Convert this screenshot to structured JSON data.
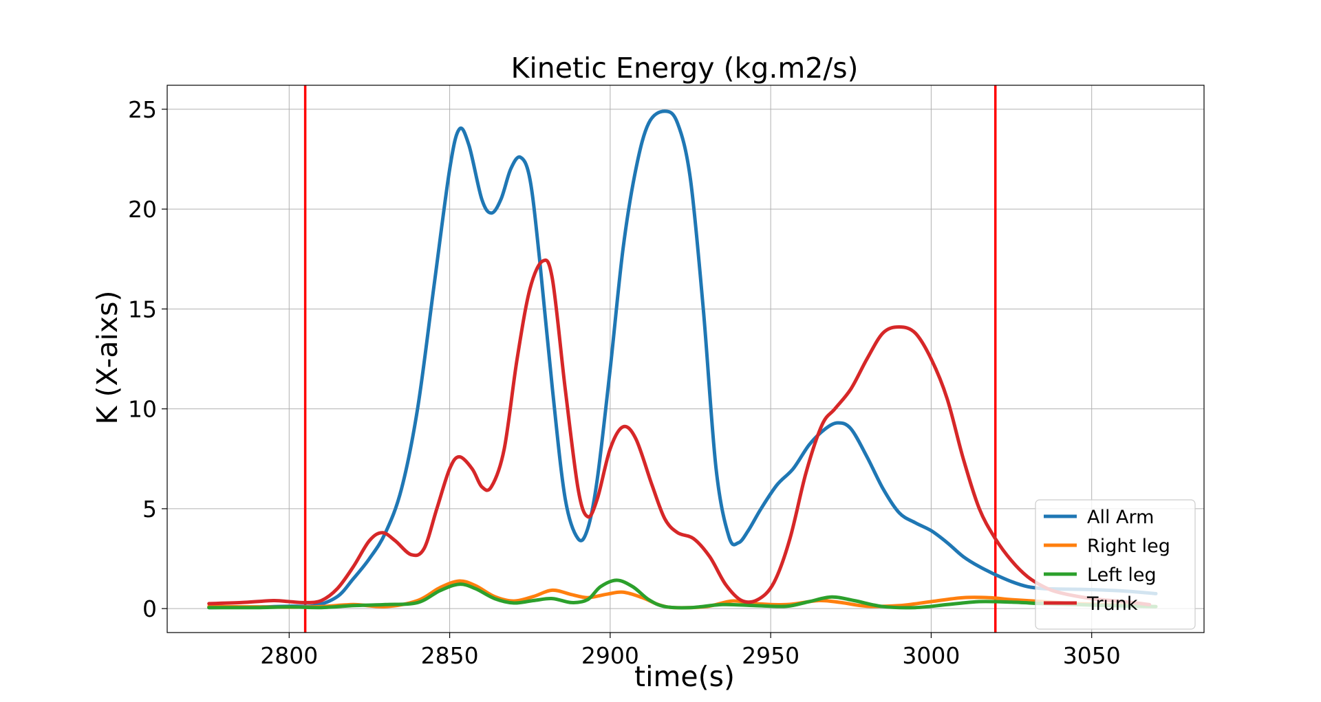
{
  "chart_data": {
    "type": "line",
    "title": "Kinetic Energy (kg.m2/s)",
    "xlabel": "time(s)",
    "ylabel": "K (X-aixs)",
    "xlim": [
      2762,
      3085
    ],
    "ylim": [
      -1.2,
      26.2
    ],
    "xticks": [
      2800,
      2850,
      2900,
      2950,
      3000,
      3050
    ],
    "yticks": [
      0,
      5,
      10,
      15,
      20,
      25
    ],
    "grid": true,
    "legend": {
      "position": "lower-right"
    },
    "vlines": [
      {
        "x": 2805,
        "color": "#ff0000"
      },
      {
        "x": 3020,
        "color": "#ff0000"
      }
    ],
    "series": [
      {
        "name": "All Arm",
        "color": "#1f77b4",
        "points": [
          [
            2775,
            0.05
          ],
          [
            2790,
            0.08
          ],
          [
            2800,
            0.12
          ],
          [
            2808,
            0.15
          ],
          [
            2815,
            0.6
          ],
          [
            2820,
            1.5
          ],
          [
            2825,
            2.5
          ],
          [
            2830,
            3.8
          ],
          [
            2835,
            6
          ],
          [
            2840,
            10
          ],
          [
            2845,
            16
          ],
          [
            2850,
            22
          ],
          [
            2853,
            24
          ],
          [
            2856,
            23.2
          ],
          [
            2860,
            20.5
          ],
          [
            2863,
            19.8
          ],
          [
            2866,
            20.5
          ],
          [
            2869,
            22
          ],
          [
            2872,
            22.6
          ],
          [
            2875,
            21.5
          ],
          [
            2878,
            17.5
          ],
          [
            2882,
            11
          ],
          [
            2886,
            5.5
          ],
          [
            2890,
            3.5
          ],
          [
            2893,
            4
          ],
          [
            2896,
            6.5
          ],
          [
            2900,
            12
          ],
          [
            2904,
            18
          ],
          [
            2908,
            22
          ],
          [
            2912,
            24.3
          ],
          [
            2917,
            24.9
          ],
          [
            2921,
            24.3
          ],
          [
            2925,
            21.5
          ],
          [
            2929,
            15
          ],
          [
            2933,
            7
          ],
          [
            2937,
            3.6
          ],
          [
            2940,
            3.3
          ],
          [
            2943,
            3.9
          ],
          [
            2947,
            5
          ],
          [
            2952,
            6.2
          ],
          [
            2957,
            7
          ],
          [
            2962,
            8.2
          ],
          [
            2967,
            9
          ],
          [
            2971,
            9.3
          ],
          [
            2975,
            9
          ],
          [
            2980,
            7.6
          ],
          [
            2985,
            6
          ],
          [
            2990,
            4.8
          ],
          [
            2995,
            4.3
          ],
          [
            3000,
            3.9
          ],
          [
            3005,
            3.3
          ],
          [
            3010,
            2.6
          ],
          [
            3015,
            2.1
          ],
          [
            3020,
            1.7
          ],
          [
            3025,
            1.35
          ],
          [
            3030,
            1.1
          ],
          [
            3035,
            1
          ],
          [
            3040,
            0.98
          ],
          [
            3050,
            0.95
          ],
          [
            3060,
            0.88
          ],
          [
            3070,
            0.75
          ]
        ]
      },
      {
        "name": "Right leg",
        "color": "#ff7f0e",
        "points": [
          [
            2775,
            0.1
          ],
          [
            2790,
            0.08
          ],
          [
            2800,
            0.07
          ],
          [
            2810,
            0.1
          ],
          [
            2820,
            0.2
          ],
          [
            2830,
            0.1
          ],
          [
            2840,
            0.4
          ],
          [
            2847,
            1.05
          ],
          [
            2853,
            1.38
          ],
          [
            2858,
            1.15
          ],
          [
            2864,
            0.6
          ],
          [
            2870,
            0.38
          ],
          [
            2876,
            0.6
          ],
          [
            2882,
            0.92
          ],
          [
            2888,
            0.7
          ],
          [
            2893,
            0.55
          ],
          [
            2899,
            0.72
          ],
          [
            2904,
            0.82
          ],
          [
            2910,
            0.55
          ],
          [
            2915,
            0.2
          ],
          [
            2920,
            0.05
          ],
          [
            2930,
            0.1
          ],
          [
            2938,
            0.38
          ],
          [
            2945,
            0.25
          ],
          [
            2955,
            0.2
          ],
          [
            2965,
            0.4
          ],
          [
            2972,
            0.3
          ],
          [
            2980,
            0.12
          ],
          [
            2990,
            0.15
          ],
          [
            3000,
            0.35
          ],
          [
            3010,
            0.55
          ],
          [
            3018,
            0.55
          ],
          [
            3025,
            0.45
          ],
          [
            3035,
            0.35
          ],
          [
            3045,
            0.25
          ],
          [
            3055,
            0.2
          ],
          [
            3070,
            0.1
          ]
        ]
      },
      {
        "name": "Left leg",
        "color": "#2ca02c",
        "points": [
          [
            2775,
            0.05
          ],
          [
            2790,
            0.05
          ],
          [
            2800,
            0.08
          ],
          [
            2810,
            0.05
          ],
          [
            2820,
            0.15
          ],
          [
            2830,
            0.2
          ],
          [
            2840,
            0.3
          ],
          [
            2847,
            0.9
          ],
          [
            2853,
            1.22
          ],
          [
            2858,
            1
          ],
          [
            2864,
            0.5
          ],
          [
            2870,
            0.28
          ],
          [
            2876,
            0.4
          ],
          [
            2882,
            0.5
          ],
          [
            2888,
            0.3
          ],
          [
            2893,
            0.45
          ],
          [
            2897,
            1.1
          ],
          [
            2902,
            1.42
          ],
          [
            2907,
            1.1
          ],
          [
            2912,
            0.45
          ],
          [
            2917,
            0.1
          ],
          [
            2925,
            0.05
          ],
          [
            2935,
            0.2
          ],
          [
            2945,
            0.15
          ],
          [
            2955,
            0.12
          ],
          [
            2962,
            0.35
          ],
          [
            2969,
            0.58
          ],
          [
            2976,
            0.4
          ],
          [
            2985,
            0.1
          ],
          [
            2995,
            0.05
          ],
          [
            3005,
            0.2
          ],
          [
            3015,
            0.35
          ],
          [
            3025,
            0.32
          ],
          [
            3035,
            0.25
          ],
          [
            3045,
            0.2
          ],
          [
            3055,
            0.15
          ],
          [
            3070,
            0.1
          ]
        ]
      },
      {
        "name": "Trunk",
        "color": "#d62728",
        "points": [
          [
            2775,
            0.25
          ],
          [
            2785,
            0.3
          ],
          [
            2795,
            0.4
          ],
          [
            2800,
            0.35
          ],
          [
            2805,
            0.3
          ],
          [
            2810,
            0.4
          ],
          [
            2815,
            1
          ],
          [
            2820,
            2.1
          ],
          [
            2825,
            3.4
          ],
          [
            2829,
            3.8
          ],
          [
            2833,
            3.4
          ],
          [
            2838,
            2.7
          ],
          [
            2842,
            3
          ],
          [
            2846,
            5
          ],
          [
            2850,
            7
          ],
          [
            2853,
            7.6
          ],
          [
            2857,
            7
          ],
          [
            2860,
            6.1
          ],
          [
            2863,
            6.1
          ],
          [
            2867,
            8
          ],
          [
            2871,
            12.5
          ],
          [
            2875,
            16
          ],
          [
            2879,
            17.4
          ],
          [
            2882,
            16.5
          ],
          [
            2886,
            11
          ],
          [
            2890,
            6
          ],
          [
            2893,
            4.6
          ],
          [
            2896,
            5.5
          ],
          [
            2900,
            8
          ],
          [
            2904,
            9.1
          ],
          [
            2908,
            8.5
          ],
          [
            2913,
            6.2
          ],
          [
            2917,
            4.5
          ],
          [
            2921,
            3.8
          ],
          [
            2926,
            3.5
          ],
          [
            2931,
            2.6
          ],
          [
            2936,
            1.2
          ],
          [
            2941,
            0.4
          ],
          [
            2946,
            0.45
          ],
          [
            2951,
            1.3
          ],
          [
            2956,
            3.5
          ],
          [
            2961,
            6.8
          ],
          [
            2966,
            9.2
          ],
          [
            2970,
            10
          ],
          [
            2975,
            11
          ],
          [
            2980,
            12.5
          ],
          [
            2985,
            13.8
          ],
          [
            2990,
            14.1
          ],
          [
            2995,
            13.8
          ],
          [
            3000,
            12.5
          ],
          [
            3005,
            10.5
          ],
          [
            3010,
            7.5
          ],
          [
            3015,
            5
          ],
          [
            3020,
            3.5
          ],
          [
            3025,
            2.4
          ],
          [
            3030,
            1.6
          ],
          [
            3035,
            1.1
          ],
          [
            3040,
            0.8
          ],
          [
            3050,
            0.5
          ],
          [
            3060,
            0.35
          ],
          [
            3068,
            0.2
          ]
        ]
      }
    ]
  }
}
